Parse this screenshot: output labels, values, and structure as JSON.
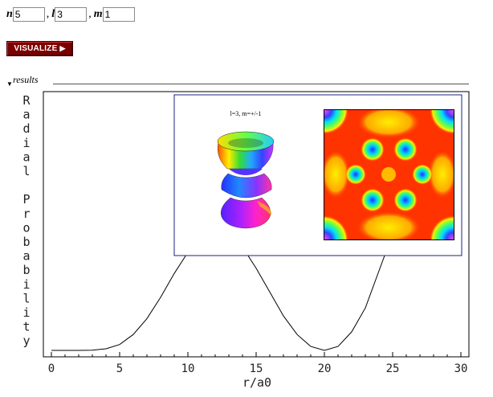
{
  "inputs": {
    "n_label": "n",
    "n_value": "5",
    "l_label": "l",
    "l_value": "3",
    "m_label": "m",
    "m_value": "1",
    "separator": ","
  },
  "visualize_button": {
    "label": "VISUALIZE",
    "icon": "play-arrow-icon"
  },
  "results": {
    "label": "results",
    "icon": "collapse-triangle-icon"
  },
  "chart_data": {
    "type": "line",
    "ylabel": "Radial Probability",
    "xlabel": "r/a0",
    "xlim": [
      0,
      30
    ],
    "x_ticks": [
      "0",
      "5",
      "10",
      "15",
      "20",
      "25",
      "30"
    ],
    "series": [
      {
        "x": [
          0,
          2,
          3,
          4,
          5,
          6,
          7,
          8,
          9,
          10,
          11,
          12,
          13,
          14,
          15,
          16,
          17,
          18,
          19,
          20,
          21,
          22,
          23,
          24,
          25,
          26,
          27,
          28,
          29,
          30
        ],
        "y": [
          0.0,
          0.0,
          0.001,
          0.006,
          0.022,
          0.06,
          0.12,
          0.2,
          0.29,
          0.37,
          0.42,
          0.44,
          0.435,
          0.39,
          0.31,
          0.22,
          0.13,
          0.06,
          0.015,
          0.0,
          0.015,
          0.07,
          0.16,
          0.3,
          0.44,
          0.58,
          0.71,
          0.82,
          0.9,
          0.95
        ]
      }
    ],
    "inset": {
      "caption": "l=3, m=+/-1",
      "orbital_icon": "f-orbital-3d-icon",
      "density_icon": "probability-density-map-icon"
    }
  }
}
